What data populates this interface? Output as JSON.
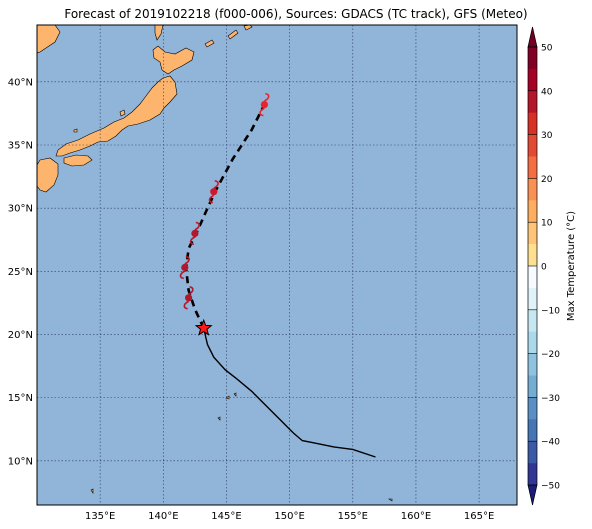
{
  "title": "Forecast of 2019102218 (f000-006), Sources: GDACS (TC track), GFS (Meteo)",
  "map": {
    "lon_range": [
      130,
      168
    ],
    "lat_range": [
      6.5,
      44.5
    ],
    "lon_ticks": [
      "135°E",
      "140°E",
      "145°E",
      "150°E",
      "155°E",
      "160°E",
      "165°E"
    ],
    "lat_ticks": [
      "10°N",
      "15°N",
      "20°N",
      "25°N",
      "30°N",
      "35°N",
      "40°N"
    ],
    "ocean_color": "#91b4d9",
    "land_color": "#fdb56e",
    "grid": "dotted"
  },
  "track": {
    "observed": [
      [
        156.8,
        10.3
      ],
      [
        155.0,
        10.9
      ],
      [
        153.5,
        11.1
      ],
      [
        152.0,
        11.4
      ],
      [
        151.0,
        11.6
      ],
      [
        150.3,
        12.2
      ],
      [
        149.3,
        13.2
      ],
      [
        148.2,
        14.3
      ],
      [
        147.0,
        15.5
      ],
      [
        145.8,
        16.5
      ],
      [
        144.9,
        17.2
      ],
      [
        144.0,
        18.2
      ],
      [
        143.5,
        19.2
      ],
      [
        143.2,
        20.5
      ]
    ],
    "forecast": [
      [
        143.2,
        20.5
      ],
      [
        142.5,
        22.0
      ],
      [
        142.0,
        23.5
      ],
      [
        141.8,
        25.2
      ],
      [
        142.0,
        26.8
      ],
      [
        142.7,
        28.2
      ],
      [
        143.5,
        30.0
      ],
      [
        144.2,
        31.5
      ],
      [
        145.5,
        33.9
      ],
      [
        147.0,
        36.2
      ],
      [
        148.0,
        38.2
      ]
    ],
    "current_position": [
      143.2,
      20.5
    ],
    "forecast_positions": [
      {
        "lon": 142.0,
        "lat": 22.9,
        "color": "#b5172a"
      },
      {
        "lon": 141.7,
        "lat": 25.3,
        "color": "#b5172a"
      },
      {
        "lon": 142.5,
        "lat": 28.0,
        "color": "#b5172a"
      },
      {
        "lon": 144.0,
        "lat": 31.3,
        "color": "#cc1a2a"
      },
      {
        "lon": 148.0,
        "lat": 38.2,
        "color": "#e8242a"
      }
    ]
  },
  "colorbar": {
    "label": "Max Temperature (°C)",
    "ticks": [
      "50",
      "40",
      "30",
      "20",
      "10",
      "0",
      "−10",
      "−20",
      "−30",
      "−40",
      "−50"
    ],
    "colors": [
      "#730024",
      "#a50026",
      "#d73027",
      "#f46d43",
      "#fdae61",
      "#fee090",
      "#ffffbf",
      "#e0f3f8",
      "#abd9e9",
      "#74add1",
      "#4575b4",
      "#313695",
      "#1b1b7a"
    ]
  }
}
